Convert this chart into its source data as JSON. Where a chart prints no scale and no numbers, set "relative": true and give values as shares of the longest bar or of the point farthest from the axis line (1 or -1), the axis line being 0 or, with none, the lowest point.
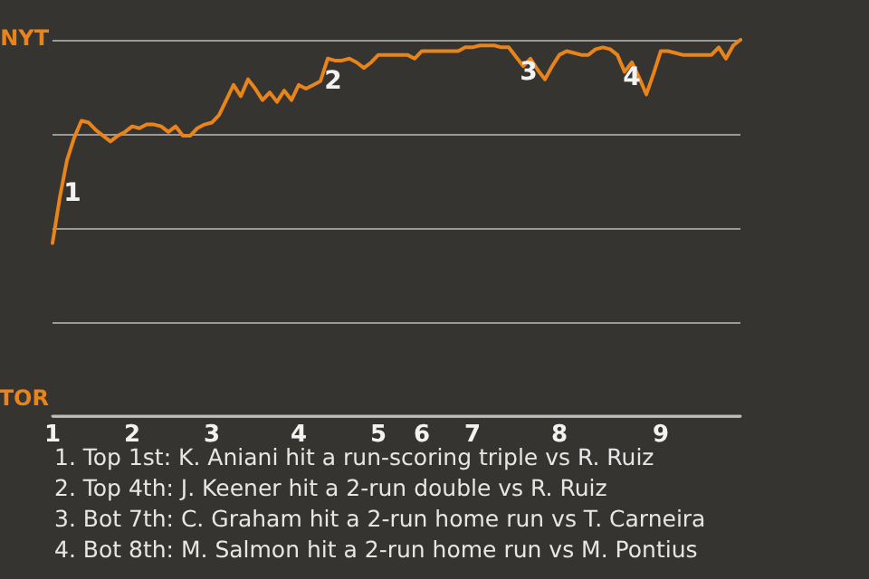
{
  "chart_data": {
    "type": "line",
    "relative": true,
    "categories": [
      "1",
      null,
      null,
      null,
      null,
      null,
      null,
      null,
      null,
      null,
      null,
      "2",
      null,
      null,
      null,
      null,
      null,
      null,
      null,
      null,
      null,
      null,
      "3",
      null,
      null,
      null,
      null,
      null,
      null,
      null,
      null,
      null,
      null,
      null,
      "4",
      null,
      null,
      null,
      null,
      null,
      null,
      null,
      null,
      null,
      null,
      "5",
      null,
      null,
      null,
      null,
      null,
      "6",
      null,
      null,
      null,
      null,
      null,
      null,
      "7",
      null,
      null,
      null,
      null,
      null,
      null,
      null,
      null,
      null,
      null,
      null,
      "8",
      null,
      null,
      null,
      null,
      null,
      null,
      null,
      null,
      null,
      null,
      null,
      null,
      null,
      "9",
      null,
      null,
      null,
      null,
      null,
      null,
      null,
      null,
      null,
      null,
      null
    ],
    "series": [
      {
        "color": "#e8841a",
        "values": [
          0.46,
          0.58,
          0.68,
          0.74,
          0.785,
          0.78,
          0.76,
          0.745,
          0.73,
          0.745,
          0.755,
          0.77,
          0.765,
          0.775,
          0.775,
          0.77,
          0.755,
          0.77,
          0.745,
          0.745,
          0.765,
          0.775,
          0.78,
          0.8,
          0.84,
          0.88,
          0.85,
          0.895,
          0.87,
          0.84,
          0.86,
          0.835,
          0.865,
          0.84,
          0.88,
          0.87,
          0.88,
          0.89,
          0.95,
          0.945,
          0.945,
          0.95,
          0.94,
          0.925,
          0.94,
          0.96,
          0.96,
          0.96,
          0.96,
          0.96,
          0.95,
          0.97,
          0.97,
          0.97,
          0.97,
          0.97,
          0.97,
          0.98,
          0.98,
          0.985,
          0.985,
          0.985,
          0.98,
          0.98,
          0.955,
          0.93,
          0.95,
          0.92,
          0.895,
          0.93,
          0.96,
          0.97,
          0.965,
          0.96,
          0.96,
          0.975,
          0.98,
          0.975,
          0.96,
          0.915,
          0.94,
          0.9,
          0.855,
          0.91,
          0.97,
          0.97,
          0.965,
          0.96,
          0.96,
          0.96,
          0.96,
          0.96,
          0.98,
          0.95,
          0.985,
          1.0
        ]
      }
    ],
    "grid": "y",
    "marker": "none",
    "line_style": "solid",
    "annotations": [
      "NYT",
      "TOR",
      "1",
      "2",
      "3",
      "4",
      "1. Top 1st: K. Aniani hit a run-scoring triple vs R. Ruiz",
      "2. Top 4th: J. Keener hit a 2-run double vs R. Ruiz",
      "3. Bot 7th: C. Graham hit a 2-run home run vs T. Carneira",
      "4. Bot 8th: M. Salmon hit a 2-run home run vs M. Pontius"
    ]
  }
}
